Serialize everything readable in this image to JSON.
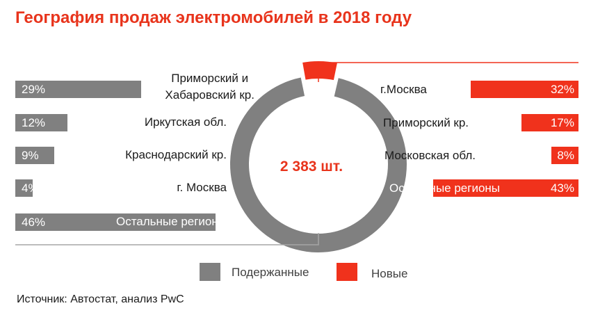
{
  "chart_data": {
    "type": "pie",
    "title": "География продаж электромобилей в 2018 году",
    "total_label": "2 383 шт.",
    "donut": {
      "slices": [
        {
          "name": "Новые",
          "value": 6,
          "label": "6%",
          "color": "#f0321c"
        },
        {
          "name": "Подержанные",
          "value": 94,
          "label": "94%",
          "color": "#808080"
        }
      ]
    },
    "used_regions": {
      "color": "#808080",
      "categories": [
        "Приморский и\nХабаровский кр.",
        "Иркутская обл.",
        "Краснодарский кр.",
        "г. Москва",
        "Остальные регионы"
      ],
      "values": [
        29,
        12,
        9,
        4,
        46
      ],
      "labels": [
        "29%",
        "12%",
        "9%",
        "4%",
        "46%"
      ]
    },
    "new_regions": {
      "color": "#f0321c",
      "categories": [
        "г.Москва",
        "Приморский кр.",
        "Московская обл.",
        "Остальные регионы"
      ],
      "values": [
        32,
        17,
        8,
        43
      ],
      "labels": [
        "32%",
        "17%",
        "8%",
        "43%"
      ]
    },
    "legend": [
      {
        "name": "Подержанные",
        "color": "#808080"
      },
      {
        "name": "Новые",
        "color": "#f0321c"
      }
    ]
  },
  "source": "Источник: Автостат, анализ PwC"
}
